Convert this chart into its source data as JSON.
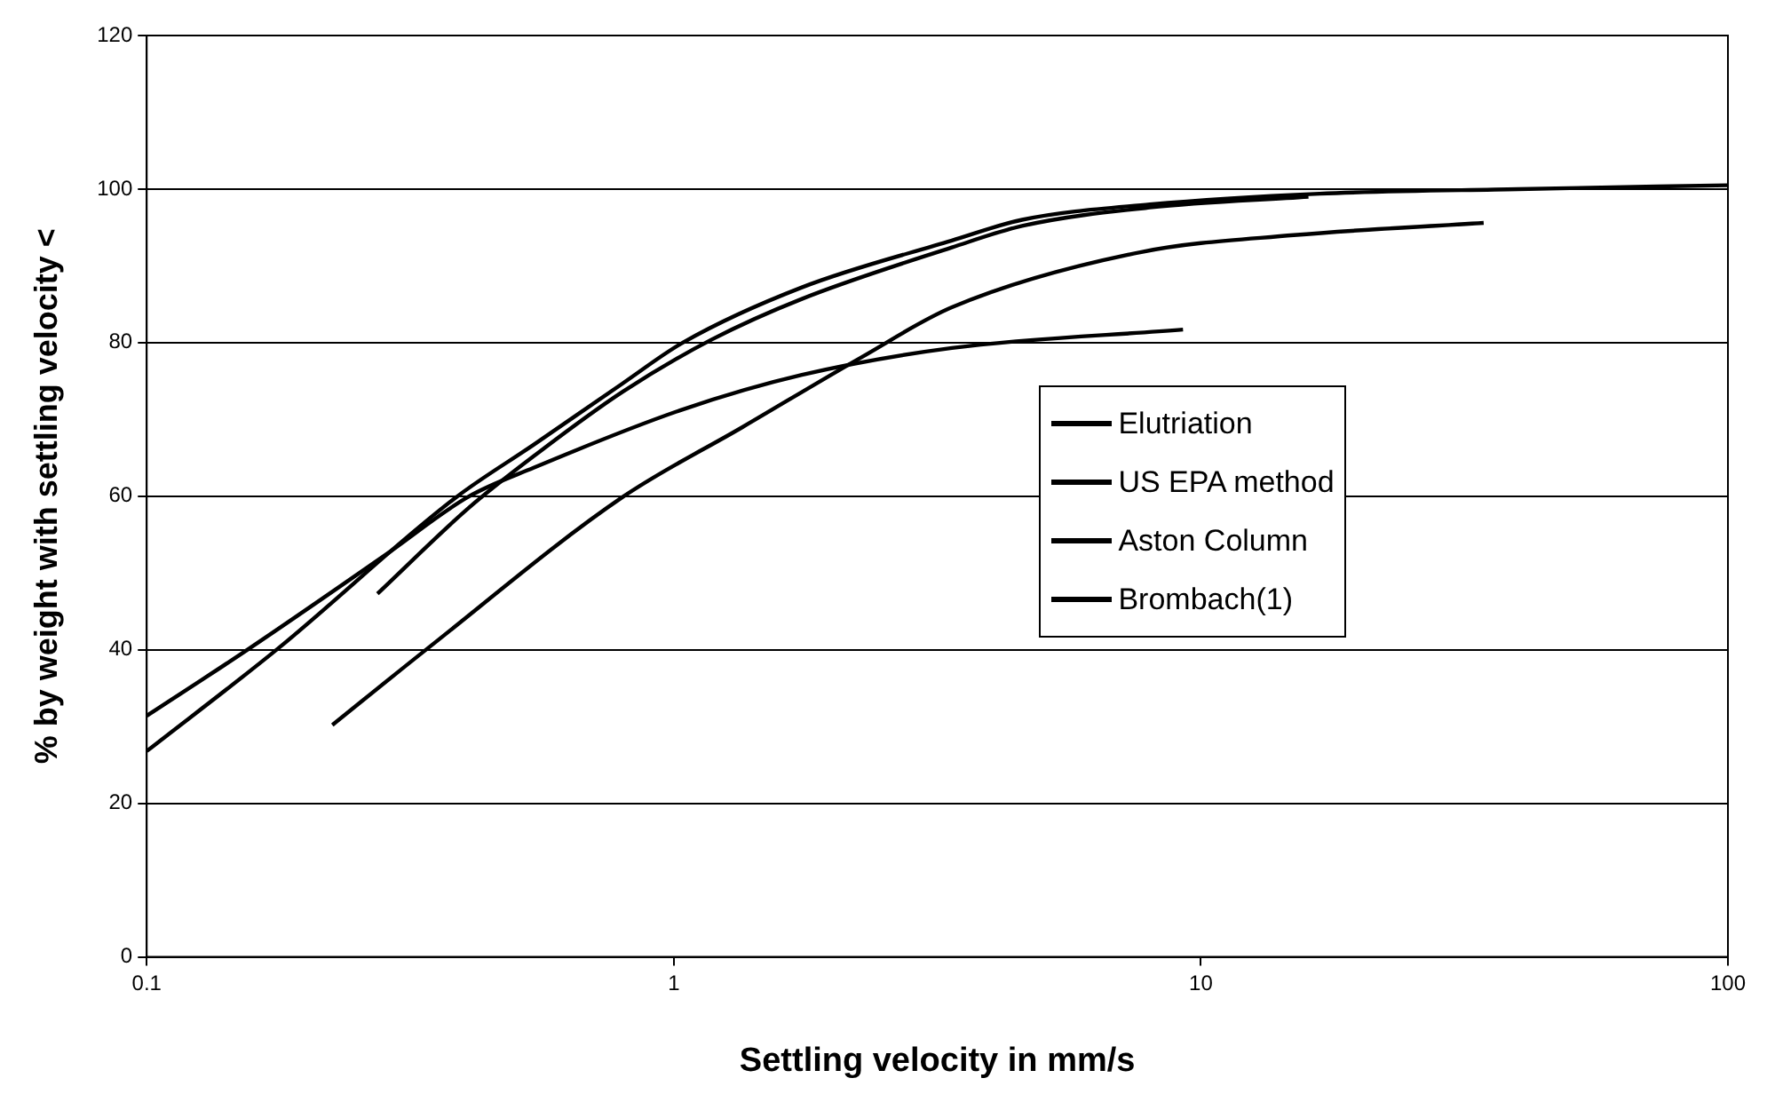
{
  "chart_data": {
    "type": "line",
    "xlabel": "Settling velocity in mm/s",
    "ylabel": "% by weight with settling velocity <",
    "log": "x",
    "xlim": [
      0.1,
      100
    ],
    "xticks": [
      0.1,
      1,
      10,
      100
    ],
    "ylim": [
      0,
      120
    ],
    "yticks": [
      0,
      20,
      40,
      60,
      80,
      100,
      120
    ],
    "grid": "y",
    "legend": "right",
    "marker": "none",
    "line_style": "solid",
    "series": [
      {
        "name": "Elutriation",
        "color": "#000000",
        "x": [
          0.1,
          0.177,
          0.387,
          0.542,
          0.8,
          1.04,
          1.75,
          3.37,
          4.58,
          8,
          16.8,
          40,
          100
        ],
        "values": [
          26.8,
          40.1,
          59.9,
          66.7,
          74.7,
          80,
          87.2,
          93.3,
          96,
          98,
          99.4,
          100,
          100.5
        ]
      },
      {
        "name": "US EPA method",
        "color": "#000000",
        "x": [
          0.274,
          0.407,
          0.542,
          0.8,
          1.18,
          1.75,
          3.37,
          4.58,
          8,
          16
        ],
        "values": [
          47.3,
          58.4,
          65.2,
          73.6,
          80.4,
          85.7,
          92.4,
          95.2,
          97.6,
          99
        ]
      },
      {
        "name": "Aston Column",
        "color": "#000000",
        "x": [
          0.225,
          0.34,
          0.8,
          1.35,
          2.27,
          3.37,
          7.71,
          15,
          34.4
        ],
        "values": [
          30.2,
          40.1,
          59.9,
          69,
          78.1,
          84.6,
          91.8,
          94,
          95.6
        ]
      },
      {
        "name": "Brombach(1)",
        "color": "#000000",
        "x": [
          0.1,
          0.156,
          0.283,
          0.407,
          0.542,
          1.04,
          1.75,
          3.37,
          9.25
        ],
        "values": [
          31.4,
          40.1,
          52.3,
          59.9,
          63.7,
          71.3,
          75.8,
          79.3,
          81.7
        ]
      }
    ]
  }
}
